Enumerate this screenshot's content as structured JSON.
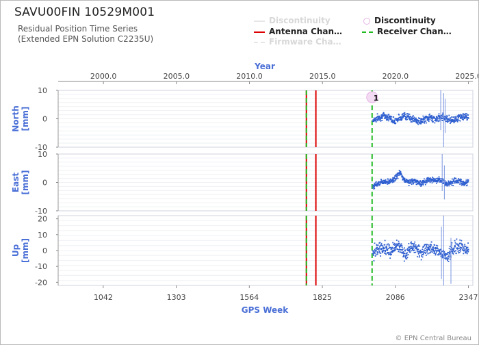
{
  "header": {
    "title": "SAVU00FIN 10529M001",
    "subtitle_line1": "Residual Position Time Series",
    "subtitle_line2": "(Extended EPN Solution C2235U)"
  },
  "legend": [
    {
      "label": "Discontinuity",
      "style": "line",
      "color": "#dddddd",
      "dash": false,
      "faded": true
    },
    {
      "label": "Discontinuity",
      "style": "circle",
      "color": "#e6b3e6",
      "faded": false
    },
    {
      "label": "Antenna Chan…",
      "style": "line",
      "color": "#dd0000",
      "dash": false,
      "faded": false
    },
    {
      "label": "Receiver Chan…",
      "style": "line",
      "color": "#22bb22",
      "dash": true,
      "faded": false
    },
    {
      "label": "Firmware Cha…",
      "style": "line",
      "color": "#dddddd",
      "dash": true,
      "faded": true
    }
  ],
  "credit": "© EPN Central Bureau",
  "chart_data": {
    "type": "scatter",
    "x_top_label": "Year",
    "x_top_ticks": [
      "2000.0",
      "2005.0",
      "2010.0",
      "2015.0",
      "2020.0",
      "2025.0"
    ],
    "x_top_tick_values": [
      2000.0,
      2005.0,
      2010.0,
      2015.0,
      2020.0,
      2025.0
    ],
    "xlabel": "GPS Week",
    "x_bottom_ticks": [
      "1042",
      "1303",
      "1564",
      "1825",
      "2086",
      "2347"
    ],
    "x_bottom_tick_values": [
      1042,
      1303,
      1564,
      1825,
      2086,
      2347
    ],
    "xlim_year": [
      1996.9,
      2025.3
    ],
    "events": [
      {
        "type": "antenna",
        "year": 2013.9,
        "color": "#dd0000"
      },
      {
        "type": "receiver",
        "year": 2013.9,
        "color": "#22bb22"
      },
      {
        "type": "antenna",
        "year": 2014.55,
        "color": "#dd0000"
      },
      {
        "type": "receiver",
        "year": 2018.4,
        "color": "#22bb22"
      }
    ],
    "discontinuity_marker": {
      "label": "1",
      "year": 2018.4
    },
    "data_start_year": 2018.45,
    "data_end_year": 2025.0,
    "panels": [
      {
        "name": "North",
        "unit": "[mm]",
        "ylim": [
          -10,
          10
        ],
        "ticks": [
          -10,
          0,
          10
        ],
        "segments": [
          {
            "x": [
              2018.45,
              2018.8,
              2019.2,
              2019.6,
              2019.9,
              2020.3,
              2020.6,
              2020.9,
              2021.3,
              2021.7,
              2022.0,
              2022.4,
              2022.8,
              2023.1,
              2023.5,
              2023.9,
              2024.3,
              2024.7,
              2025.0
            ],
            "y": [
              -0.5,
              0.3,
              1.0,
              0.5,
              -0.8,
              0.4,
              1.2,
              0.6,
              -0.4,
              -1.0,
              -0.2,
              0.5,
              -0.3,
              0.8,
              0.2,
              -0.6,
              0.4,
              0.8,
              0.3
            ],
            "noise": 1.2
          }
        ],
        "spikes": [
          {
            "year": 2023.1,
            "lo": -4,
            "hi": 11
          },
          {
            "year": 2023.3,
            "lo": -10,
            "hi": 9
          },
          {
            "year": 2023.4,
            "lo": -5,
            "hi": 7
          }
        ]
      },
      {
        "name": "East",
        "unit": "[mm]",
        "ylim": [
          -10,
          10
        ],
        "ticks": [
          -10,
          0,
          10
        ],
        "segments": [
          {
            "x": [
              2018.45,
              2018.8,
              2019.2,
              2019.6,
              2019.9,
              2020.3,
              2020.6,
              2020.9,
              2021.3,
              2021.7,
              2022.0,
              2022.4,
              2022.8,
              2023.1,
              2023.5,
              2023.9,
              2024.3,
              2024.7,
              2025.0
            ],
            "y": [
              -1.5,
              -0.3,
              0.5,
              0.2,
              1.0,
              3.5,
              0.8,
              0.2,
              0.5,
              -0.4,
              0.3,
              1.2,
              0.4,
              0.8,
              -0.5,
              0.2,
              0.6,
              -0.3,
              0.2
            ],
            "noise": 1.0
          }
        ],
        "spikes": [
          {
            "year": 2023.2,
            "lo": -3,
            "hi": 10
          },
          {
            "year": 2023.35,
            "lo": -6,
            "hi": 6
          }
        ]
      },
      {
        "name": "Up",
        "unit": "[mm]",
        "ylim": [
          -22,
          22
        ],
        "ticks": [
          -20,
          -10,
          0,
          10,
          20
        ],
        "segments": [
          {
            "x": [
              2018.45,
              2018.8,
              2019.2,
              2019.6,
              2019.9,
              2020.3,
              2020.6,
              2020.9,
              2021.3,
              2021.7,
              2022.0,
              2022.4,
              2022.8,
              2023.1,
              2023.5,
              2023.9,
              2024.3,
              2024.7,
              2025.0
            ],
            "y": [
              -2.0,
              0.5,
              2.0,
              -1.0,
              1.5,
              3.0,
              -2.5,
              1.0,
              2.5,
              -1.5,
              0.5,
              2.0,
              0.8,
              -1.0,
              -4.0,
              0.5,
              2.5,
              1.5,
              1.0
            ],
            "noise": 4.0
          }
        ],
        "spikes": [
          {
            "year": 2023.15,
            "lo": -18,
            "hi": 15
          },
          {
            "year": 2023.3,
            "lo": -40,
            "hi": 22
          },
          {
            "year": 2023.8,
            "lo": -21,
            "hi": 8
          }
        ]
      }
    ]
  }
}
